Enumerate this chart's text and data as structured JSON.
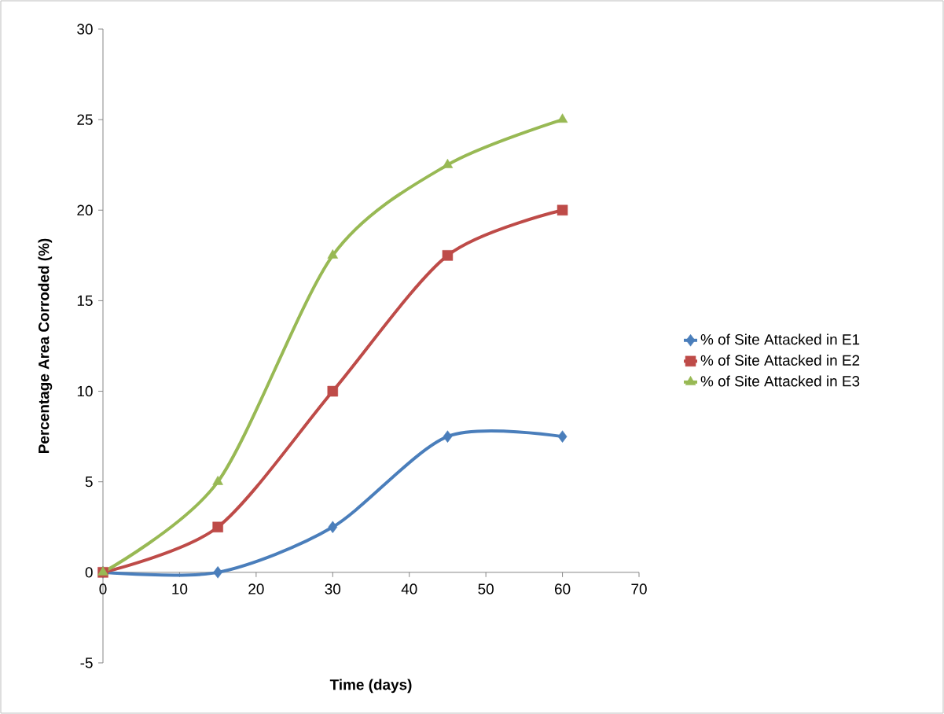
{
  "chart_data": {
    "type": "line",
    "xlabel": "Time (days)",
    "ylabel": "Percentage Area Corroded (%)",
    "x": [
      0,
      15,
      30,
      45,
      60
    ],
    "series": [
      {
        "name": "% of Site Attacked in E1",
        "color": "#4a7ebb",
        "marker": "diamond",
        "values": [
          0,
          0,
          2.5,
          7.5,
          7.5
        ]
      },
      {
        "name": "% of Site Attacked in E2",
        "color": "#be4b48",
        "marker": "square",
        "values": [
          0,
          2.5,
          10,
          17.5,
          20
        ]
      },
      {
        "name": "% of Site Attacked in E3",
        "color": "#98b954",
        "marker": "triangle",
        "values": [
          0,
          5,
          17.5,
          22.5,
          25
        ]
      }
    ],
    "xlim": [
      0,
      70
    ],
    "ylim": [
      -5,
      30
    ],
    "xticks": [
      0,
      10,
      20,
      30,
      40,
      50,
      60,
      70
    ],
    "yticks": [
      -5,
      0,
      5,
      10,
      15,
      20,
      25,
      30
    ],
    "line_style": "solid",
    "grid": false,
    "legend": "right"
  }
}
